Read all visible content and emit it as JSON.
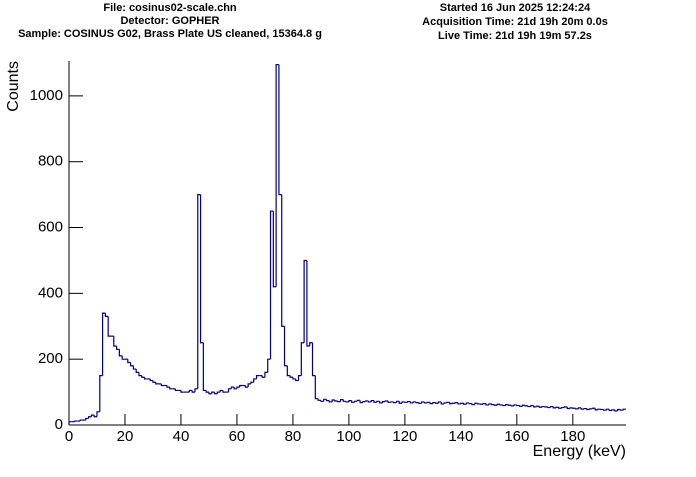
{
  "chart_data": {
    "type": "histogram",
    "header_left": [
      "File: cosinus02-scale.chn",
      "Detector: GOPHER",
      "Sample: COSINUS G02, Brass Plate US cleaned, 15364.8 g"
    ],
    "header_right": [
      "Started 16 Jun 2025 12:24:24",
      "Acquisition Time: 21d 19h 20m 0.0s",
      "Live Time: 21d 19h 19m 57.2s"
    ],
    "x_label": "Energy (keV)",
    "y_label": "Counts",
    "color": "#000080",
    "xlim": [
      0,
      199
    ],
    "ylim": [
      0,
      1106
    ],
    "xticks": [
      0,
      20,
      40,
      60,
      80,
      100,
      120,
      140,
      160,
      180
    ],
    "yticks": [
      0,
      200,
      400,
      600,
      800,
      1000
    ],
    "bins": [
      0,
      1,
      2,
      3,
      4,
      5,
      6,
      7,
      8,
      9,
      10,
      11,
      12,
      13,
      14,
      15,
      16,
      17,
      18,
      19,
      20,
      21,
      22,
      23,
      24,
      25,
      26,
      27,
      28,
      29,
      30,
      31,
      32,
      33,
      34,
      35,
      36,
      37,
      38,
      39,
      40,
      41,
      42,
      43,
      44,
      45,
      46,
      47,
      48,
      49,
      50,
      51,
      52,
      53,
      54,
      55,
      56,
      57,
      58,
      59,
      60,
      61,
      62,
      63,
      64,
      65,
      66,
      67,
      68,
      69,
      70,
      71,
      72,
      73,
      74,
      75,
      76,
      77,
      78,
      79,
      80,
      81,
      82,
      83,
      84,
      85,
      86,
      87,
      88,
      89,
      90,
      91,
      92,
      93,
      94,
      95,
      96,
      97,
      98,
      99,
      100,
      101,
      102,
      103,
      104,
      105,
      106,
      107,
      108,
      109,
      110,
      111,
      112,
      113,
      114,
      115,
      116,
      117,
      118,
      119,
      120,
      121,
      122,
      123,
      124,
      125,
      126,
      127,
      128,
      129,
      130,
      131,
      132,
      133,
      134,
      135,
      136,
      137,
      138,
      139,
      140,
      141,
      142,
      143,
      144,
      145,
      146,
      147,
      148,
      149,
      150,
      151,
      152,
      153,
      154,
      155,
      156,
      157,
      158,
      159,
      160,
      161,
      162,
      163,
      164,
      165,
      166,
      167,
      168,
      169,
      170,
      171,
      172,
      173,
      174,
      175,
      176,
      177,
      178,
      179,
      180,
      181,
      182,
      183,
      184,
      185,
      186,
      187,
      188,
      189,
      190,
      191,
      192,
      193,
      194,
      195,
      196,
      197,
      198,
      199
    ],
    "values": [
      10,
      10,
      12,
      12,
      15,
      15,
      20,
      25,
      30,
      25,
      40,
      150,
      340,
      330,
      270,
      270,
      240,
      230,
      210,
      200,
      200,
      190,
      180,
      170,
      160,
      150,
      145,
      140,
      140,
      135,
      130,
      125,
      125,
      120,
      120,
      115,
      110,
      110,
      105,
      105,
      100,
      100,
      100,
      105,
      100,
      110,
      700,
      250,
      105,
      100,
      95,
      100,
      95,
      100,
      105,
      100,
      100,
      110,
      115,
      110,
      115,
      120,
      120,
      115,
      125,
      130,
      140,
      150,
      150,
      145,
      160,
      200,
      650,
      420,
      1095,
      700,
      300,
      180,
      150,
      145,
      140,
      135,
      150,
      250,
      500,
      240,
      250,
      150,
      80,
      75,
      72,
      78,
      74,
      70,
      76,
      73,
      71,
      77,
      72,
      70,
      74,
      69,
      72,
      75,
      68,
      71,
      73,
      70,
      74,
      69,
      72,
      67,
      71,
      73,
      69,
      70,
      68,
      72,
      66,
      70,
      69,
      71,
      67,
      70,
      68,
      66,
      70,
      67,
      69,
      65,
      68,
      66,
      70,
      64,
      67,
      69,
      65,
      66,
      68,
      64,
      66,
      63,
      67,
      65,
      62,
      66,
      64,
      63,
      65,
      61,
      64,
      62,
      60,
      63,
      61,
      59,
      62,
      60,
      58,
      61,
      59,
      57,
      60,
      58,
      56,
      59,
      55,
      57,
      54,
      56,
      55,
      53,
      56,
      52,
      54,
      51,
      53,
      55,
      50,
      52,
      51,
      49,
      52,
      48,
      50,
      47,
      49,
      51,
      46,
      48,
      47,
      45,
      48,
      44,
      46,
      43,
      47,
      45,
      48
    ]
  }
}
